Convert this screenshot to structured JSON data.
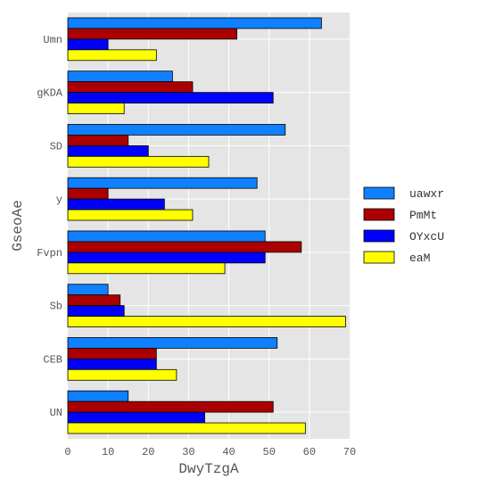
{
  "chart_data": {
    "type": "bar",
    "orientation": "horizontal",
    "title": "",
    "xlabel": "DwyTzgA",
    "ylabel": "GseoAe",
    "xlim": [
      0,
      70
    ],
    "xticks": [
      0,
      10,
      20,
      30,
      40,
      50,
      60,
      70
    ],
    "grid": true,
    "legend_position": "right",
    "categories": [
      "Umn",
      "gKDA",
      "SD",
      "y",
      "Fvpn",
      "Sb",
      "CEB",
      "UN"
    ],
    "series": [
      {
        "name": "uawxr",
        "color": "#0f80ff",
        "values": [
          63,
          26,
          54,
          47,
          49,
          10,
          52,
          15
        ]
      },
      {
        "name": "PmMt",
        "color": "#aa0000",
        "values": [
          42,
          31,
          15,
          10,
          58,
          13,
          22,
          51
        ]
      },
      {
        "name": "OYxcU",
        "color": "#0000ff",
        "values": [
          10,
          51,
          20,
          24,
          49,
          14,
          22,
          34
        ]
      },
      {
        "name": "eaM",
        "color": "#ffff00",
        "values": [
          22,
          14,
          35,
          31,
          39,
          69,
          27,
          59
        ]
      }
    ]
  }
}
